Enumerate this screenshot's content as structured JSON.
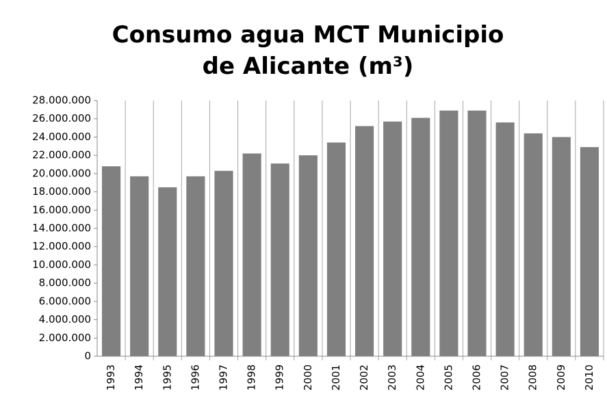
{
  "chart_data": {
    "type": "bar",
    "title": "Consumo agua MCT Municipio de Alicante (m³)",
    "categories": [
      "1993",
      "1994",
      "1995",
      "1996",
      "1997",
      "1998",
      "1999",
      "2000",
      "2001",
      "2002",
      "2003",
      "2004",
      "2005",
      "2006",
      "2007",
      "2008",
      "2009",
      "2010"
    ],
    "values": [
      20800000,
      19700000,
      18500000,
      19700000,
      20300000,
      22200000,
      21100000,
      22000000,
      23400000,
      25200000,
      25700000,
      26100000,
      26900000,
      26900000,
      25600000,
      24400000,
      24000000,
      22900000
    ],
    "color": "#808080",
    "ylim": [
      0,
      28000000
    ],
    "yticks": [
      0,
      {
        "value": 2000000,
        "label": "2.000.000"
      },
      {
        "value": 4000000,
        "label": "4.000.000"
      },
      {
        "value": 6000000,
        "label": "6.000.000"
      },
      {
        "value": 8000000,
        "label": "8.000.000"
      },
      {
        "value": 10000000,
        "label": "10.000.000"
      },
      {
        "value": 12000000,
        "label": "12.000.000"
      },
      {
        "value": 14000000,
        "label": "14.000.000"
      },
      {
        "value": 16000000,
        "label": "16.000.000"
      },
      {
        "value": 18000000,
        "label": "18.000.000"
      },
      {
        "value": 20000000,
        "label": "20.000.000"
      },
      {
        "value": 22000000,
        "label": "22.000.000"
      },
      {
        "value": 24000000,
        "label": "24.000.000"
      },
      {
        "value": 26000000,
        "label": "26.000.000"
      },
      {
        "value": 28000000,
        "label": "28.000.000"
      }
    ],
    "grid": true
  }
}
